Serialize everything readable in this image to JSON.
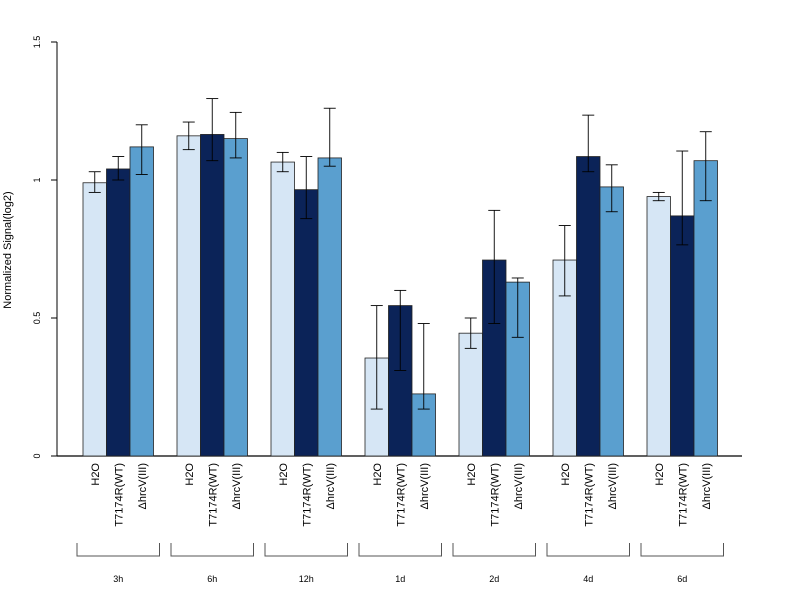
{
  "chart_data": {
    "type": "bar",
    "ylabel": "Normalized Signal(log2)",
    "ylim": [
      0,
      1.5
    ],
    "yticks": [
      0,
      0.5,
      1,
      1.5
    ],
    "yticklabels": [
      "0",
      "0.5",
      "1",
      "1.5"
    ],
    "groups": [
      "3h",
      "6h",
      "12h",
      "1d",
      "2d",
      "4d",
      "6d"
    ],
    "treatments": [
      "H2O",
      "T7174R(WT)",
      "ΔhrcV(III)"
    ],
    "colors": [
      "#d6e6f5",
      "#0b2358",
      "#5a9fcf"
    ],
    "series": [
      {
        "values": [
          0.99,
          1.16,
          1.065,
          0.355,
          0.445,
          0.71,
          0.94
        ],
        "err_low": [
          0.955,
          1.11,
          1.03,
          0.17,
          0.39,
          0.58,
          0.925
        ],
        "err_high": [
          1.03,
          1.21,
          1.1,
          0.545,
          0.5,
          0.835,
          0.955
        ]
      },
      {
        "values": [
          1.04,
          1.165,
          0.965,
          0.545,
          0.71,
          1.085,
          0.87
        ],
        "err_low": [
          1.0,
          1.07,
          0.86,
          0.31,
          0.48,
          1.03,
          0.765
        ],
        "err_high": [
          1.085,
          1.295,
          1.085,
          0.6,
          0.89,
          1.235,
          1.105
        ]
      },
      {
        "values": [
          1.12,
          1.15,
          1.08,
          0.225,
          0.63,
          0.975,
          1.07
        ],
        "err_low": [
          1.02,
          1.08,
          1.05,
          0.17,
          0.43,
          0.885,
          0.925
        ],
        "err_high": [
          1.2,
          1.245,
          1.26,
          0.48,
          0.645,
          1.055,
          1.175
        ]
      }
    ]
  }
}
